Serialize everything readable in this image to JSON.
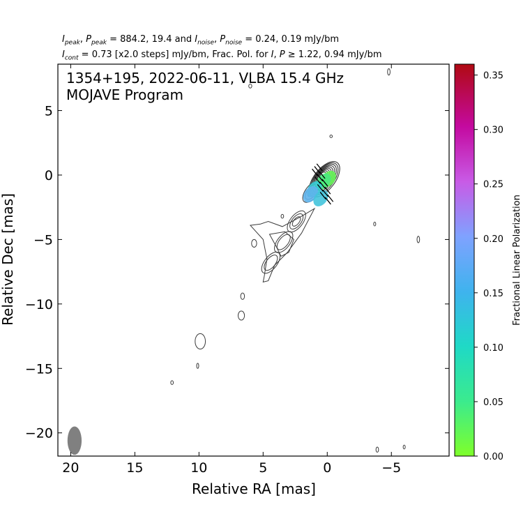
{
  "chart_data": {
    "type": "contour",
    "source": "1354+195",
    "date": "2022-06-11",
    "instrument": "VLBA 15.4 GHz",
    "title_line1": "1354+195, 2022-06-11, VLBA 15.4 GHz",
    "title_line2": "MOJAVE Program",
    "header": {
      "ipeak_label": "I",
      "ipeak_sub": "peak",
      "ppeak_label": "P",
      "ppeak_sub": "peak",
      "peak_values": "= 884.2, 19.4 and",
      "inoise_label": "I",
      "inoise_sub": "noise",
      "pnoise_label": "P",
      "pnoise_sub": "noise",
      "noise_values": "= 0.24, 0.19 mJy/bm",
      "icont_label": "I",
      "icont_sub": "cont",
      "cont_values": "= 0.73 [x2.0 steps] mJy/bm, Frac. Pol. for",
      "fp_I": "I",
      "fp_P": "P",
      "fp_values": "≥ 1.22, 0.94 mJy/bm"
    },
    "xlabel": "Relative RA [mas]",
    "ylabel": "Relative Dec [mas]",
    "xlim": [
      21,
      -9.5
    ],
    "ylim": [
      -21.8,
      8.6
    ],
    "xticks": [
      20,
      15,
      10,
      5,
      0,
      -5
    ],
    "xtick_labels": [
      "20",
      "15",
      "10",
      "5",
      "0",
      "−5"
    ],
    "yticks": [
      5,
      0,
      -5,
      -10,
      -15,
      -20
    ],
    "ytick_labels": [
      "5",
      "0",
      "−5",
      "−10",
      "−15",
      "−20"
    ],
    "contour_color": "#3a3a3a",
    "core": {
      "ra": 0,
      "dec": 0
    },
    "jet_knots": [
      {
        "ra": 1.2,
        "dec": -1.3
      },
      {
        "ra": 2.4,
        "dec": -3.6
      },
      {
        "ra": 3.4,
        "dec": -5.2
      },
      {
        "ra": 4.4,
        "dec": -6.8
      }
    ],
    "isolated_features": [
      {
        "ra": 6.7,
        "dec": -10.9,
        "rx": 0.25,
        "ry": 0.35
      },
      {
        "ra": 6.6,
        "dec": -9.4,
        "rx": 0.15,
        "ry": 0.25
      },
      {
        "ra": 9.9,
        "dec": -12.9,
        "rx": 0.4,
        "ry": 0.6
      },
      {
        "ra": 10.1,
        "dec": -14.8,
        "rx": 0.08,
        "ry": 0.2
      },
      {
        "ra": 12.1,
        "dec": -16.1,
        "rx": 0.1,
        "ry": 0.15
      },
      {
        "ra": 5.7,
        "dec": -5.3,
        "rx": 0.2,
        "ry": 0.3
      },
      {
        "ra": 3.5,
        "dec": -3.2,
        "rx": 0.1,
        "ry": 0.15
      },
      {
        "ra": 6.0,
        "dec": 6.9,
        "rx": 0.12,
        "ry": 0.15
      },
      {
        "ra": -0.3,
        "dec": 3.0,
        "rx": 0.1,
        "ry": 0.1
      },
      {
        "ra": -3.7,
        "dec": -3.8,
        "rx": 0.05,
        "ry": 0.15
      },
      {
        "ra": -7.1,
        "dec": -5.0,
        "rx": 0.1,
        "ry": 0.25
      },
      {
        "ra": -4.8,
        "dec": 8.0,
        "rx": 0.1,
        "ry": 0.25
      },
      {
        "ra": -3.9,
        "dec": -21.3,
        "rx": 0.1,
        "ry": 0.2
      },
      {
        "ra": -6.0,
        "dec": -21.1,
        "rx": 0.05,
        "ry": 0.15
      }
    ],
    "beam": {
      "ra": 19.7,
      "dec": -20.6,
      "major_mas": 1.1,
      "minor_mas": 0.55,
      "pa_deg": 0,
      "color": "#808080"
    },
    "polarization_regions": [
      {
        "ra": -0.1,
        "dec": -0.3,
        "fpol": 0.02
      },
      {
        "ra": 0.3,
        "dec": -0.5,
        "fpol": 0.04
      },
      {
        "ra": 1.0,
        "dec": -1.1,
        "fpol": 0.09
      },
      {
        "ra": 1.3,
        "dec": -1.5,
        "fpol": 0.12
      },
      {
        "ra": 0.5,
        "dec": -1.8,
        "fpol": 0.1
      }
    ],
    "colorbar": {
      "label": "Fractional Linear Polarization",
      "min": 0.0,
      "max": 0.36,
      "ticks": [
        0.0,
        0.05,
        0.1,
        0.15,
        0.2,
        0.25,
        0.3,
        0.35
      ],
      "tick_labels": [
        "0.00",
        "0.05",
        "0.10",
        "0.15",
        "0.20",
        "0.25",
        "0.30",
        "0.35"
      ],
      "colors": [
        "#7FFF2A",
        "#1FD9C6",
        "#7FA2FF",
        "#C85BE6",
        "#C40AA0",
        "#B00A12"
      ]
    }
  }
}
